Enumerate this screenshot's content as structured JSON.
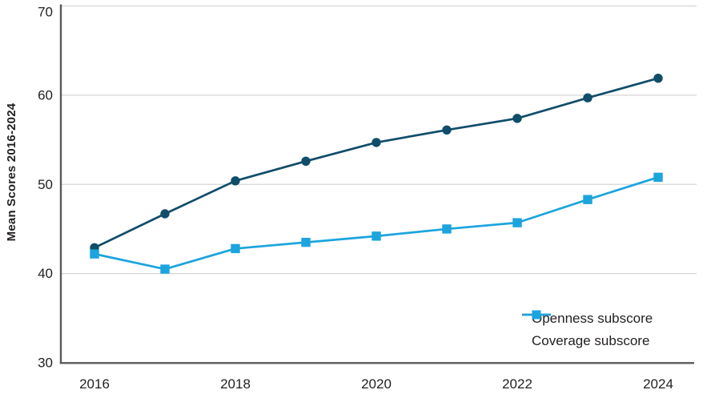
{
  "chart_data": {
    "type": "line",
    "title": "",
    "ylabel": "Mean Scores 2016-2024",
    "xlabel": "",
    "x": [
      2016,
      2017,
      2018,
      2019,
      2020,
      2021,
      2022,
      2023,
      2024
    ],
    "series": [
      {
        "name": "Openness subscore",
        "marker": "circle",
        "color": "#104d6a",
        "values": [
          42.9,
          46.7,
          50.4,
          52.6,
          54.7,
          56.1,
          57.4,
          59.7,
          61.9
        ]
      },
      {
        "name": "Coverage subscore",
        "marker": "square",
        "color": "#1ca4dd",
        "values": [
          42.2,
          40.5,
          42.8,
          43.5,
          44.2,
          45.0,
          45.7,
          48.3,
          50.8
        ]
      }
    ],
    "ylim": [
      30,
      70
    ],
    "yticks": [
      30,
      40,
      50,
      60,
      70
    ],
    "xticks": [
      2016,
      2018,
      2020,
      2022,
      2024
    ],
    "grid": true,
    "legend_position": "bottom-right"
  },
  "colors": {
    "grid": "#d6d6d6",
    "axis": "#58595b",
    "text": "#231f20",
    "background": "#ffffff"
  }
}
